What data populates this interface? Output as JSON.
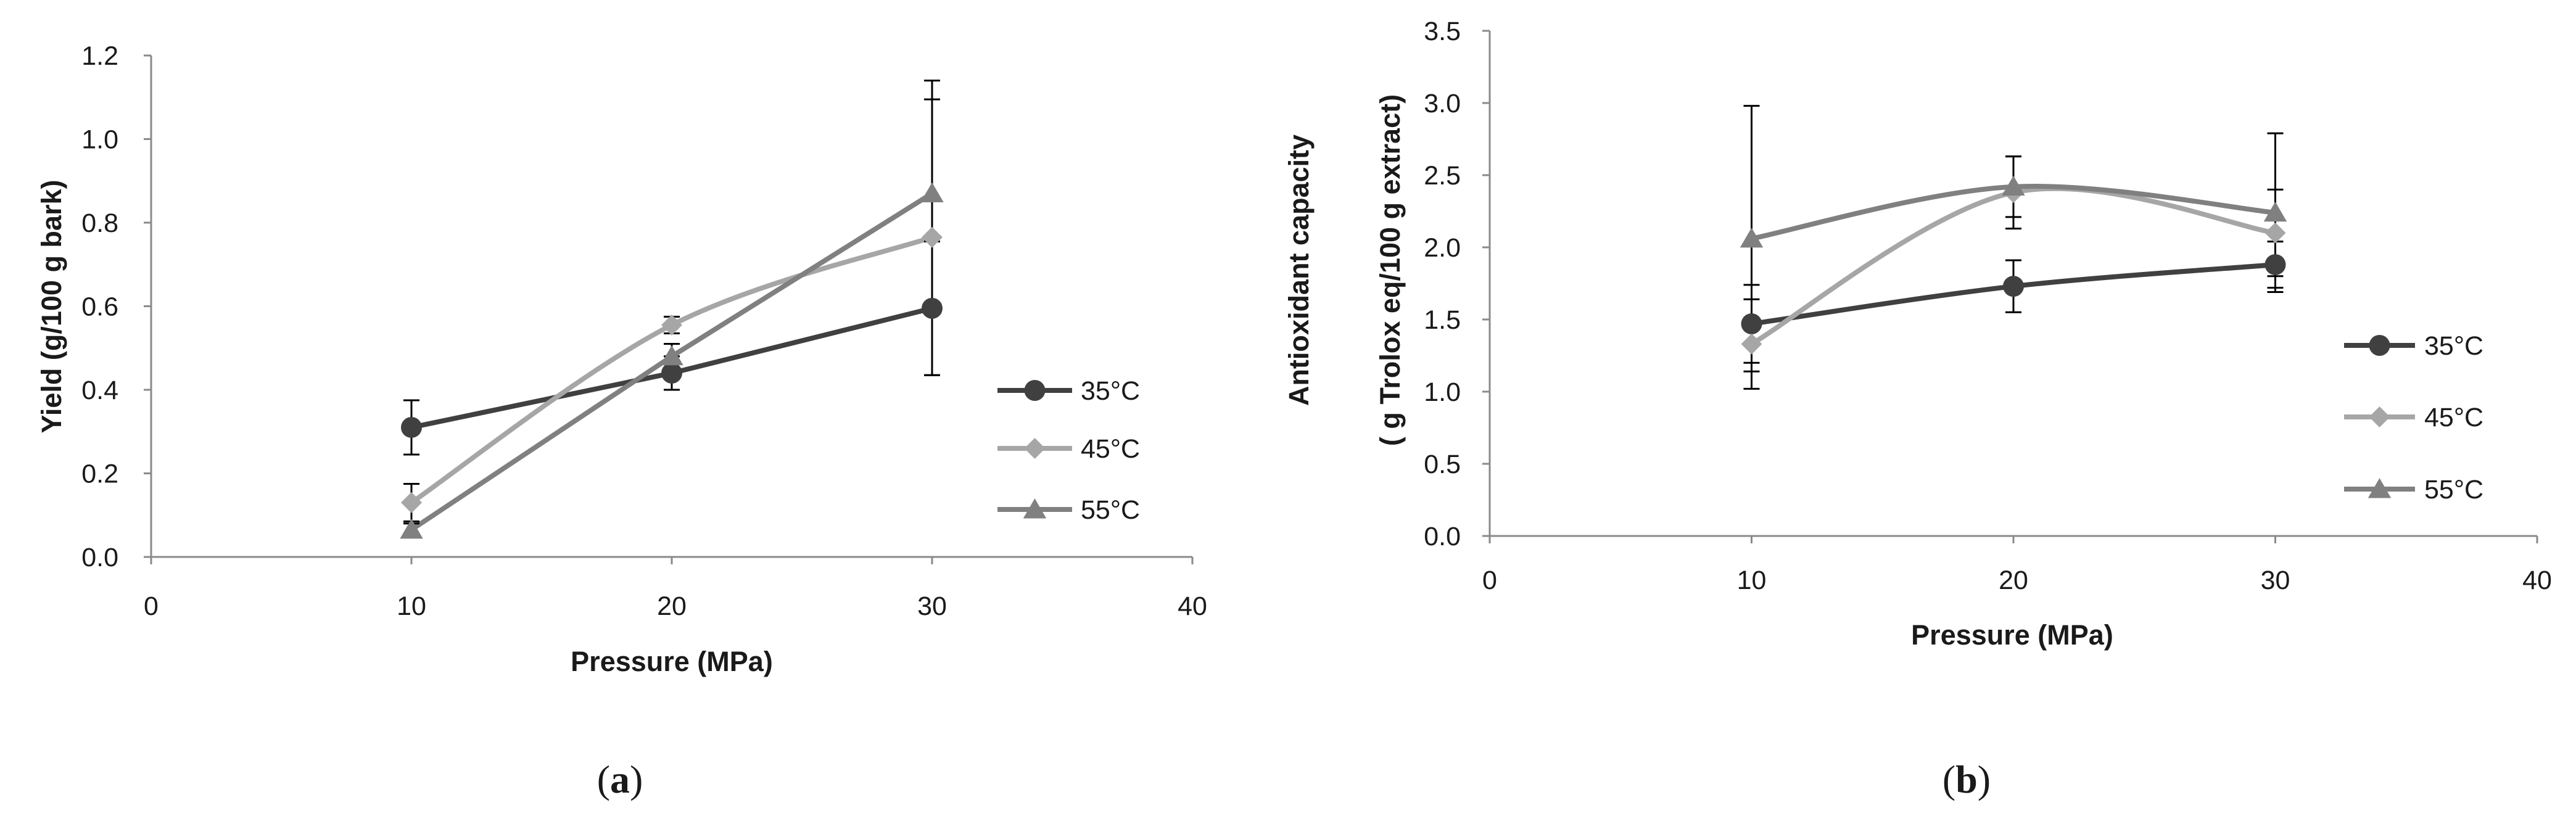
{
  "chart_data": [
    {
      "type": "line",
      "panel_label": {
        "open": "(",
        "letter": "a",
        "close": ")"
      },
      "title": "",
      "xlabel": "Pressure (MPa)",
      "ylabel": "Yield (g/100 g bark)",
      "xlim": [
        0,
        40
      ],
      "ylim": [
        0,
        1.2
      ],
      "xticks": [
        0,
        10,
        20,
        30,
        40
      ],
      "xtick_labels": [
        "0",
        "10",
        "20",
        "30",
        "40"
      ],
      "yticks": [
        0,
        0.2,
        0.4,
        0.6,
        0.8,
        1.0,
        1.2
      ],
      "ytick_labels": [
        "0.0",
        "0.2",
        "0.4",
        "0.6",
        "0.8",
        "1.0",
        "1.2"
      ],
      "grid": false,
      "legend_position": "right",
      "x": [
        10,
        20,
        30
      ],
      "series": [
        {
          "name": "35°C",
          "marker": "circle",
          "color": "#404040",
          "smooth": false,
          "values": [
            0.31,
            0.44,
            0.595
          ],
          "errors": [
            0.065,
            0.04,
            0.16
          ]
        },
        {
          "name": "45°C",
          "marker": "diamond",
          "color": "#a6a6a6",
          "smooth": true,
          "values": [
            0.13,
            0.555,
            0.765
          ],
          "errors": [
            0.045,
            0.02,
            0.33
          ]
        },
        {
          "name": "55°C",
          "marker": "triangle",
          "color": "#808080",
          "smooth": false,
          "values": [
            0.065,
            0.48,
            0.87
          ],
          "errors": [
            0.015,
            0.03,
            0.27
          ]
        }
      ]
    },
    {
      "type": "line",
      "panel_label": {
        "open": "(",
        "letter": "b",
        "close": ")"
      },
      "title": "",
      "xlabel": "Pressure (MPa)",
      "ylabel": [
        "Antioxidant  capacity",
        "( g Trolox  eq/100 g extract)"
      ],
      "xlim": [
        0,
        40
      ],
      "ylim": [
        0,
        3.5
      ],
      "xticks": [
        0,
        10,
        20,
        30,
        40
      ],
      "xtick_labels": [
        "0",
        "10",
        "20",
        "30",
        "40"
      ],
      "yticks": [
        0,
        0.5,
        1.0,
        1.5,
        2.0,
        2.5,
        3.0,
        3.5
      ],
      "ytick_labels": [
        "0.0",
        "0.5",
        "1.0",
        "1.5",
        "2.0",
        "2.5",
        "3.0",
        "3.5"
      ],
      "grid": false,
      "legend_position": "right",
      "x": [
        10,
        20,
        30
      ],
      "series": [
        {
          "name": "35°C",
          "marker": "circle",
          "color": "#404040",
          "smooth": true,
          "values": [
            1.47,
            1.73,
            1.88
          ],
          "errors": [
            0.27,
            0.18,
            0.16
          ]
        },
        {
          "name": "45°C",
          "marker": "diamond",
          "color": "#a6a6a6",
          "smooth": true,
          "values": [
            1.33,
            2.38,
            2.1
          ],
          "errors": [
            0.31,
            0.25,
            0.3
          ]
        },
        {
          "name": "55°C",
          "marker": "triangle",
          "color": "#808080",
          "smooth": true,
          "values": [
            2.06,
            2.42,
            2.24
          ],
          "errors": [
            0.92,
            0.21,
            0.55
          ]
        }
      ]
    }
  ]
}
